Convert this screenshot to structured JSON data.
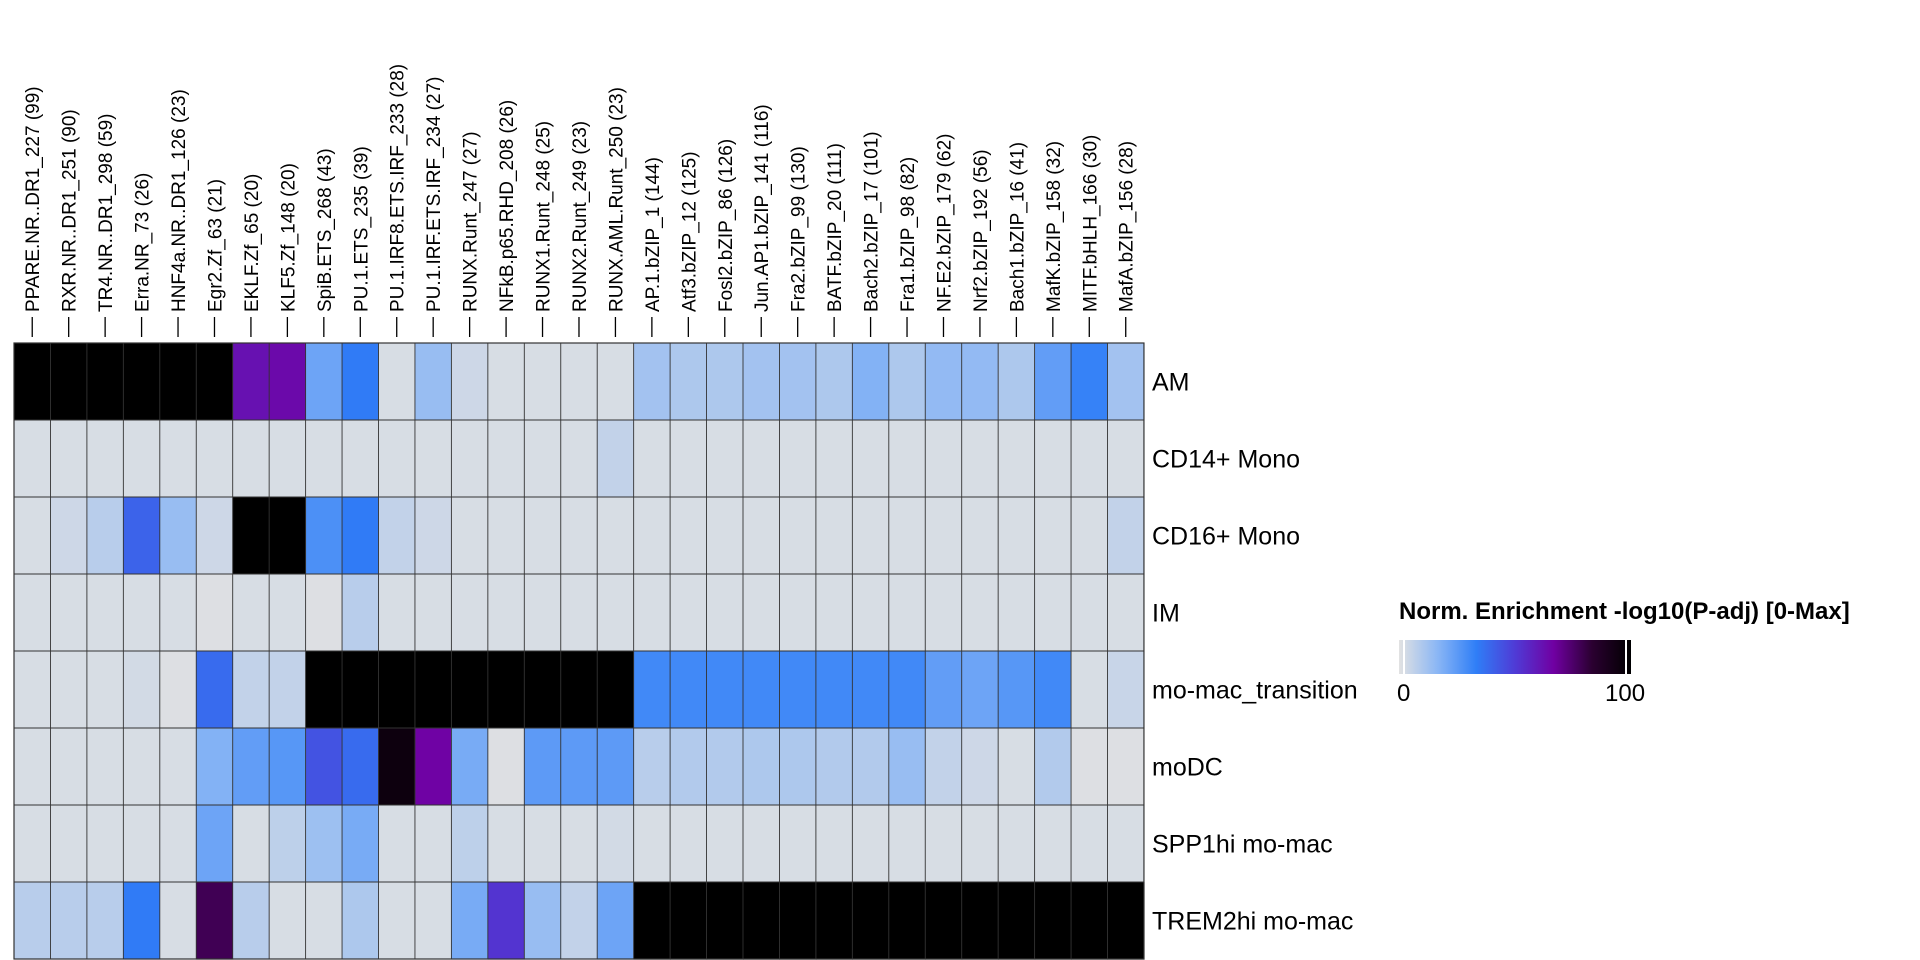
{
  "chart_data": {
    "type": "heatmap",
    "columns": [
      "PPARE.NR..DR1_227 (99)",
      "RXR.NR..DR1_251 (90)",
      "TR4.NR..DR1_298 (59)",
      "Erra.NR_73 (26)",
      "HNF4a.NR..DR1_126 (23)",
      "Egr2.Zf_63 (21)",
      "EKLF.Zf_65 (20)",
      "KLF5.Zf_148 (20)",
      "SpiB.ETS_268 (43)",
      "PU.1.ETS_235 (39)",
      "PU.1.IRF8.ETS.IRF_233 (28)",
      "PU.1.IRF.ETS.IRF_234 (27)",
      "RUNX.Runt_247 (27)",
      "NFkB.p65.RHD_208 (26)",
      "RUNX1.Runt_248 (25)",
      "RUNX2.Runt_249 (23)",
      "RUNX.AML.Runt_250 (23)",
      "AP.1.bZIP_1 (144)",
      "Atf3.bZIP_12 (125)",
      "Fosl2.bZIP_86 (126)",
      "Jun.AP1.bZIP_141 (116)",
      "Fra2.bZIP_99 (130)",
      "BATF.bZIP_20 (111)",
      "Bach2.bZIP_17 (101)",
      "Fra1.bZIP_98 (82)",
      "NF.E2.bZIP_179 (62)",
      "Nrf2.bZIP_192 (56)",
      "Bach1.bZIP_16 (41)",
      "MafK.bZIP_158 (32)",
      "MITF.bHLH_166 (30)",
      "MafA.bZIP_156 (28)"
    ],
    "rows": [
      "AM",
      "CD14+ Mono",
      "CD16+ Mono",
      "IM",
      "mo-mac_transition",
      "moDC",
      "SPP1hi mo-mac",
      "TREM2hi mo-mac"
    ],
    "values": [
      [
        100,
        100,
        100,
        100,
        100,
        100,
        62,
        64,
        22,
        34,
        2,
        14,
        4,
        2,
        2,
        2,
        2,
        12,
        10,
        10,
        12,
        12,
        10,
        18,
        10,
        15,
        15,
        10,
        24,
        32,
        12
      ],
      [
        2,
        2,
        2,
        2,
        2,
        2,
        2,
        2,
        2,
        2,
        2,
        2,
        2,
        2,
        2,
        2,
        6,
        2,
        2,
        2,
        2,
        2,
        2,
        2,
        2,
        2,
        2,
        2,
        2,
        2,
        2
      ],
      [
        2,
        4,
        8,
        40,
        14,
        4,
        100,
        100,
        28,
        34,
        6,
        4,
        2,
        2,
        2,
        2,
        2,
        2,
        2,
        2,
        2,
        2,
        2,
        2,
        2,
        2,
        2,
        2,
        2,
        2,
        6
      ],
      [
        2,
        2,
        2,
        2,
        2,
        1,
        2,
        2,
        1,
        8,
        2,
        2,
        2,
        2,
        2,
        2,
        2,
        2,
        2,
        2,
        2,
        2,
        2,
        2,
        2,
        2,
        2,
        2,
        2,
        2,
        2
      ],
      [
        2,
        2,
        2,
        3,
        1,
        38,
        6,
        6,
        100,
        100,
        100,
        100,
        100,
        100,
        100,
        100,
        100,
        30,
        30,
        30,
        30,
        30,
        30,
        30,
        30,
        24,
        22,
        26,
        30,
        2,
        5
      ],
      [
        2,
        2,
        2,
        2,
        2,
        18,
        24,
        26,
        44,
        38,
        95,
        66,
        20,
        1,
        25,
        25,
        25,
        8,
        9,
        9,
        10,
        10,
        9,
        9,
        14,
        6,
        4,
        2,
        9,
        1,
        1
      ],
      [
        2,
        2,
        2,
        2,
        2,
        22,
        2,
        7,
        13,
        20,
        2,
        2,
        7,
        2,
        2,
        2,
        3,
        2,
        2,
        2,
        2,
        2,
        2,
        2,
        2,
        2,
        2,
        2,
        2,
        2,
        2
      ],
      [
        8,
        8,
        8,
        34,
        2,
        78,
        8,
        2,
        2,
        10,
        2,
        2,
        20,
        52,
        14,
        6,
        22,
        100,
        100,
        100,
        100,
        100,
        100,
        100,
        100,
        100,
        100,
        100,
        100,
        100,
        100
      ]
    ],
    "colorbar": {
      "title": "Norm. Enrichment -log10(P-adj) [0-Max]",
      "min_label": "0",
      "max_label": "100",
      "range": [
        0,
        100
      ],
      "colors": [
        "#e2e2e2",
        "#8ab6f5",
        "#2f7ef7",
        "#4f3bd6",
        "#7000a2",
        "#2a0030",
        "#000000"
      ]
    },
    "legend_position": "right"
  }
}
